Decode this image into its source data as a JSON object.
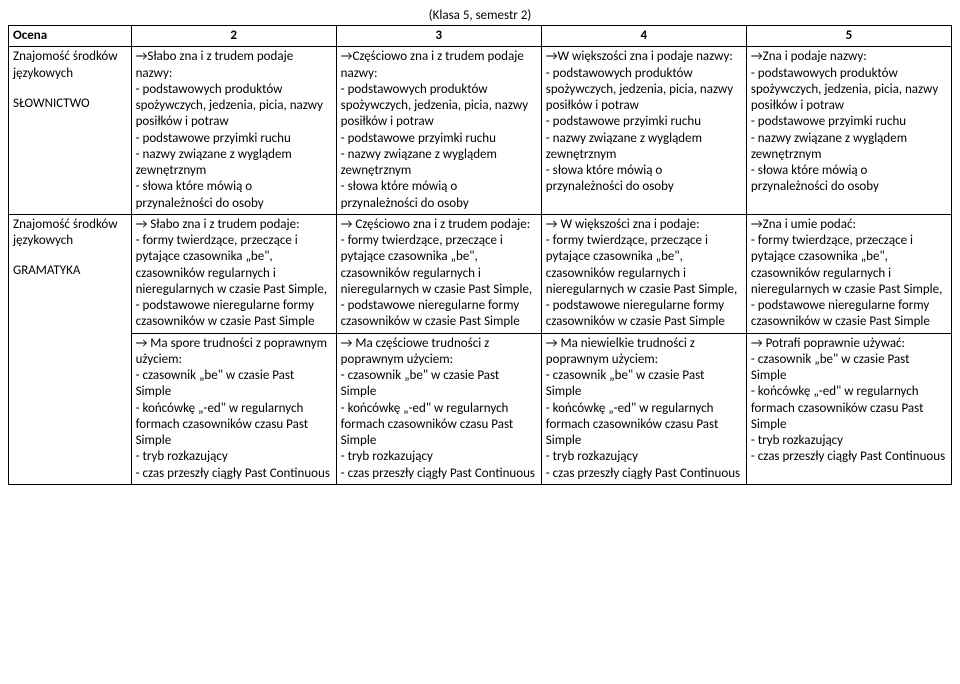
{
  "title": "(Klasa 5, semestr 2)",
  "header": {
    "ocena": "Ocena",
    "g2": "2",
    "g3": "3",
    "g4": "4",
    "g5": "5"
  },
  "row1": {
    "label_line1": "Znajomość środków",
    "label_line2": "językowych",
    "label_sub": "SŁOWNICTWO",
    "c2": "→Słabo zna i z trudem podaje nazwy:\n- podstawowych produktów spożywczych, jedzenia, picia, nazwy posiłków i potraw\n- podstawowe  przyimki ruchu\n- nazwy związane z wyglądem zewnętrznym\n- słowa które mówią o przynależności do osoby",
    "c3": "→Częściowo zna i z trudem podaje nazwy:\n- podstawowych produktów spożywczych, jedzenia, picia, nazwy posiłków i potraw\n- podstawowe  przyimki ruchu\n- nazwy związane z wyglądem zewnętrznym\n- słowa które mówią o przynależności do osoby",
    "c4": "→W większości zna i podaje nazwy:\n- podstawowych produktów spożywczych, jedzenia, picia, nazwy posiłków i potraw\n- podstawowe  przyimki ruchu\n- nazwy związane z wyglądem zewnętrznym\n- słowa które mówią o przynależności do osoby",
    "c5": "→Zna i podaje nazwy:\n- podstawowych produktów spożywczych, jedzenia, picia, nazwy posiłków i potraw\n- podstawowe  przyimki ruchu\n- nazwy związane z wyglądem zewnętrznym\n- słowa które mówią o przynależności do osoby"
  },
  "row2": {
    "label_line1": "Znajomość środków",
    "label_line2": "językowych",
    "label_sub": "GRAMATYKA",
    "c2a": "→ Słabo zna i z trudem podaje:\n- formy twierdzące, przeczące i pytające czasownika „be\", czasowników regularnych i nieregularnych  w czasie Past Simple,\n- podstawowe nieregularne formy czasowników w czasie Past Simple",
    "c3a": "→ Częściowo zna i z trudem podaje:\n- formy twierdzące, przeczące i pytające czasownika „be\", czasowników regularnych i nieregularnych  w czasie Past Simple,\n- podstawowe nieregularne formy czasowników w czasie Past Simple",
    "c4a": "→ W większości zna i podaje:\n- formy twierdzące, przeczące i pytające czasownika „be\", czasowników regularnych i nieregularnych  w czasie Past Simple,\n- podstawowe nieregularne formy czasowników w czasie Past Simple",
    "c5a": "→Zna i umie podać:\n- formy twierdzące, przeczące i pytające czasownika „be\", czasowników regularnych i nieregularnych  w czasie Past Simple,\n- podstawowe nieregularne formy czasowników w czasie Past Simple",
    "c2b": "→ Ma spore trudności z poprawnym użyciem:\n- czasownik „be\"  w czasie Past Simple\n- końcówkę „-ed\" w regularnych formach czasowników czasu Past Simple\n- tryb rozkazujący\n- czas przeszły ciągły Past Continuous",
    "c3b": "→ Ma częściowe trudności z poprawnym użyciem:\n- czasownik „be\" w czasie Past Simple\n- końcówkę „-ed\" w regularnych formach czasowników czasu Past Simple\n- tryb rozkazujący\n- czas przeszły ciągły Past Continuous",
    "c4b": "→ Ma niewielkie trudności z poprawnym użyciem:\n- czasownik „be\" w czasie Past Simple\n- końcówkę „-ed\" w regularnych formach czasowników czasu Past Simple\n- tryb rozkazujący\n- czas przeszły ciągły Past Continuous",
    "c5b": "→ Potrafi poprawnie używać:\n- czasownik „be\" w czasie Past Simple\n- końcówkę „-ed\" w regularnych formach czasowników czasu Past Simple\n- tryb rozkazujący\n- czas przeszły ciągły Past Continuous"
  }
}
